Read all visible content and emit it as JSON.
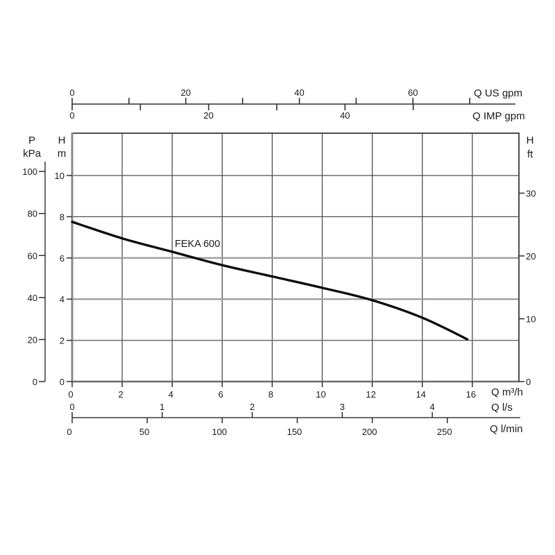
{
  "chart_data": {
    "type": "line",
    "title": "FEKA 600",
    "series": [
      {
        "name": "FEKA 600",
        "x_m3h": [
          0,
          2,
          4,
          6,
          8,
          10,
          12,
          14,
          15.8
        ],
        "y_m": [
          7.75,
          6.95,
          6.3,
          5.65,
          5.1,
          4.55,
          3.95,
          3.1,
          2.05
        ]
      }
    ],
    "axes": {
      "top_us_gpm": {
        "label": "Q US gpm",
        "labeled_ticks": [
          0,
          20,
          40,
          60
        ],
        "minor_ticks": [
          10,
          30,
          50,
          70
        ]
      },
      "top_imp_gpm": {
        "label": "Q IMP gpm",
        "labeled_ticks": [
          0,
          20,
          40
        ],
        "minor_ticks": [
          10,
          30,
          50
        ]
      },
      "left_kpa": {
        "label_line1": "P",
        "label_line2": "kPa",
        "ticks": [
          0,
          20,
          40,
          60,
          80,
          100
        ]
      },
      "left_m": {
        "label_line1": "H",
        "label_line2": "m",
        "ticks": [
          0,
          2,
          4,
          6,
          8,
          10
        ]
      },
      "right_ft": {
        "label_line1": "H",
        "label_line2": "ft",
        "ticks": [
          0,
          10,
          20,
          30
        ]
      },
      "bottom_m3h": {
        "label": "Q m³/h",
        "ticks": [
          0,
          2,
          4,
          6,
          8,
          10,
          12,
          14,
          16
        ]
      },
      "bottom_ls": {
        "label": "Q l/s",
        "ticks": [
          0,
          1,
          2,
          3,
          4
        ]
      },
      "bottom_lmin": {
        "label": "Q l/min",
        "ticks": [
          0,
          50,
          100,
          150,
          200,
          250
        ]
      }
    },
    "x_range_m3h": [
      0,
      17.9
    ],
    "y_range_m": [
      0,
      12.02
    ],
    "grid": true,
    "legend_position": "inline-curve-label",
    "colors": {
      "background": "#ffffff",
      "curve": "#0d0d0d",
      "text": "#1a1a1a",
      "axis_dark": "#2e2e2e",
      "grid_dark": "#4d4d4d",
      "grid_mid": "#6b6b6b",
      "grid_light": "#9e9e9e",
      "border_left": "#8a8a8a"
    }
  }
}
